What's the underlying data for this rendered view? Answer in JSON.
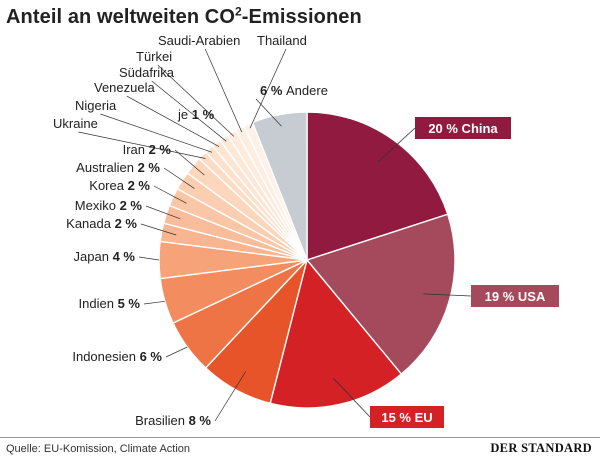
{
  "title_prefix": "Anteil an weltweiten CO",
  "title_sup": "2",
  "title_suffix": "-Emissionen",
  "source": "Quelle: EU-Komission, Climate Action",
  "brand": "DER STANDARD",
  "chart_data": {
    "type": "pie",
    "title": "Anteil an weltweiten CO2-Emissionen",
    "unit": "%",
    "slices": [
      {
        "label": "China",
        "value": 20,
        "value_text": "20 %",
        "color": "#901a40"
      },
      {
        "label": "USA",
        "value": 19,
        "value_text": "19 %",
        "color": "#a44a5c"
      },
      {
        "label": "EU",
        "value": 15,
        "value_text": "15 %",
        "color": "#d42125"
      },
      {
        "label": "Brasilien",
        "value": 8,
        "value_text": "8 %",
        "color": "#e8542a"
      },
      {
        "label": "Indonesien",
        "value": 6,
        "value_text": "6 %",
        "color": "#ee7445"
      },
      {
        "label": "Indien",
        "value": 5,
        "value_text": "5 %",
        "color": "#f38c5e"
      },
      {
        "label": "Japan",
        "value": 4,
        "value_text": "4 %",
        "color": "#f6a37a"
      },
      {
        "label": "Kanada",
        "value": 2,
        "value_text": "2 %",
        "color": "#f8b590"
      },
      {
        "label": "Mexiko",
        "value": 2,
        "value_text": "2 %",
        "color": "#f9bd9b"
      },
      {
        "label": "Korea",
        "value": 2,
        "value_text": "2 %",
        "color": "#fac6a6"
      },
      {
        "label": "Australien",
        "value": 2,
        "value_text": "2 %",
        "color": "#fbceb1"
      },
      {
        "label": "Iran",
        "value": 2,
        "value_text": "2 %",
        "color": "#fcd6bd"
      },
      {
        "label": "Ukraine",
        "value": 1,
        "value_text": "",
        "color": "#fcdcc6"
      },
      {
        "label": "Nigeria",
        "value": 1,
        "value_text": "",
        "color": "#fde1cd"
      },
      {
        "label": "Venezuela",
        "value": 1,
        "value_text": "",
        "color": "#fde5d3"
      },
      {
        "label": "Südafrika",
        "value": 1,
        "value_text": "",
        "color": "#fde8d8"
      },
      {
        "label": "Türkei",
        "value": 1,
        "value_text": "",
        "color": "#feebdd"
      },
      {
        "label": "Saudi-Arabien",
        "value": 1,
        "value_text": "",
        "color": "#feeee2"
      },
      {
        "label": "Thailand",
        "value": 1,
        "value_text": "",
        "color": "#fef1e7"
      },
      {
        "label": "Andere",
        "value": 6,
        "value_text": "6 %",
        "color": "#c6ccd1"
      }
    ],
    "group_annotation": "je 1 %"
  }
}
